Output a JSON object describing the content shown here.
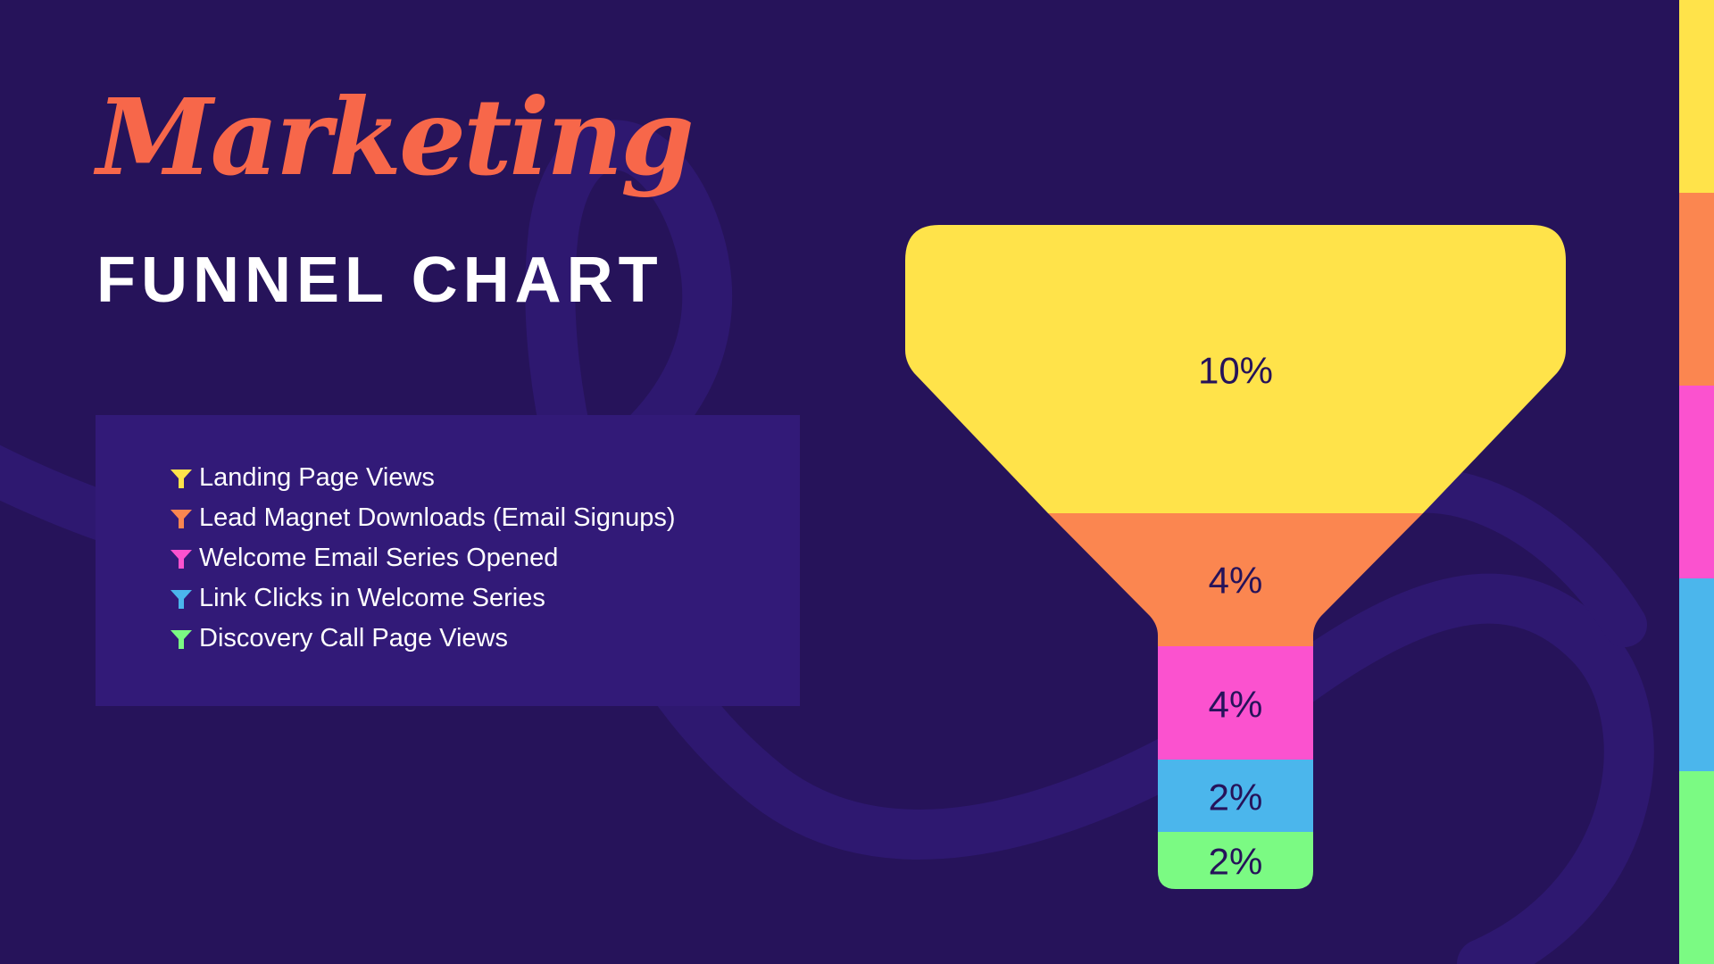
{
  "title": {
    "script": "Marketing",
    "subtitle": "FUNNEL CHART"
  },
  "legend": {
    "items": [
      {
        "label": "Landing Page Views",
        "color": "#ffe34a",
        "icon": "funnel-icon"
      },
      {
        "label": "Lead Magnet Downloads (Email Signups)",
        "color": "#fb8650",
        "icon": "funnel-icon"
      },
      {
        "label": "Welcome Email Series Opened",
        "color": "#fb52cf",
        "icon": "funnel-icon"
      },
      {
        "label": "Link Clicks in Welcome Series",
        "color": "#4bb6ec",
        "icon": "funnel-icon"
      },
      {
        "label": "Discovery Call Page Views",
        "color": "#7bfa83",
        "icon": "funnel-icon"
      }
    ]
  },
  "chart_data": {
    "type": "funnel",
    "categories": [
      "Landing Page Views",
      "Lead Magnet Downloads (Email Signups)",
      "Welcome Email Series Opened",
      "Link Clicks in Welcome Series",
      "Discovery Call Page Views"
    ],
    "values": [
      10,
      4,
      4,
      2,
      2
    ],
    "labels": [
      "10%",
      "4%",
      "4%",
      "2%",
      "2%"
    ],
    "unit": "%",
    "colors": [
      "#ffe34a",
      "#fb8650",
      "#fb52cf",
      "#4bb6ec",
      "#7bfa83"
    ]
  },
  "side_bar": {
    "colors": [
      "#ffe34a",
      "#fb8650",
      "#fb52cf",
      "#4bb6ec",
      "#7bfa83"
    ]
  },
  "theme": {
    "background": "#26135a",
    "legend_panel": "#321a78",
    "label_color": "#26135a",
    "title_accent": "#f7674a"
  }
}
